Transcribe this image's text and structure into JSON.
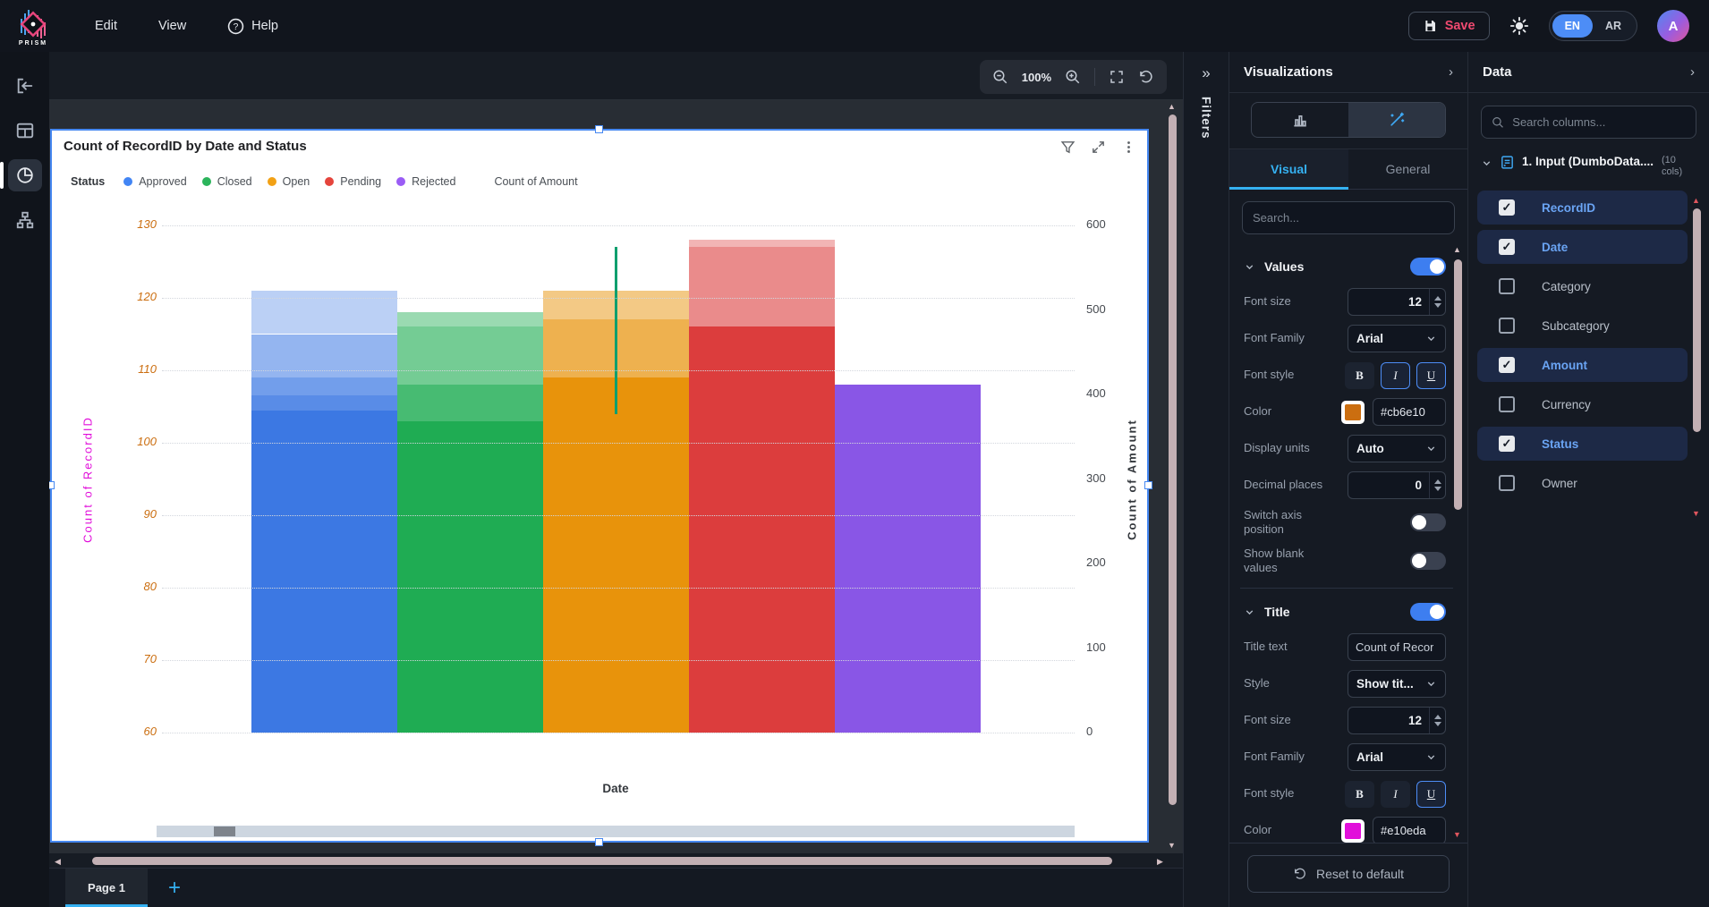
{
  "topbar": {
    "brand": "PRISM",
    "menu": [
      "Edit",
      "View",
      "Help"
    ],
    "save_label": "Save",
    "lang_en": "EN",
    "lang_ar": "AR",
    "avatar_initial": "A"
  },
  "canvas_toolbar": {
    "zoom_level": "100%"
  },
  "filters_strip": {
    "label": "Filters"
  },
  "chart_widget": {
    "title": "Count of RecordID by Date and Status",
    "legend_field": "Status",
    "secondary_legend": "Count of Amount"
  },
  "chart_data": {
    "type": "bar",
    "title": "Count of RecordID by Date and Status",
    "xlabel": "Date",
    "ylabel_left": "Count of RecordID",
    "ylabel_right": "Count of Amount",
    "legend_position": "top",
    "grid": "dotted-horizontal",
    "x_tick_labels_visible": false,
    "y_left": {
      "min": 60,
      "max": 130,
      "ticks": [
        130,
        120,
        110,
        100,
        90,
        80,
        70,
        60
      ],
      "tick_color": "#cb6e10",
      "tick_style": "italic",
      "title_color": "#e10eda"
    },
    "y_right": {
      "min": 0,
      "max": 600,
      "ticks": [
        600,
        500,
        400,
        300,
        200,
        100,
        0
      ],
      "tick_color": "#45494f",
      "title_color": "#33373c"
    },
    "series": [
      {
        "name": "Approved",
        "color": "#3c78e3",
        "dot": "#4285f4",
        "total": 121,
        "segments": [
          {
            "from": 121,
            "to": 115,
            "opacity": 0.35
          },
          {
            "from": 115,
            "to": 109,
            "opacity": 0.55
          },
          {
            "from": 109,
            "to": 106.5,
            "opacity": 0.72
          },
          {
            "from": 106.5,
            "to": 104.5,
            "opacity": 0.85
          },
          {
            "from": 104.5,
            "to": 60,
            "opacity": 1
          }
        ]
      },
      {
        "name": "Closed",
        "color": "#1fac53",
        "dot": "#2bb45b",
        "total": 118,
        "segments": [
          {
            "from": 118,
            "to": 116,
            "opacity": 0.45
          },
          {
            "from": 116,
            "to": 108,
            "opacity": 0.62
          },
          {
            "from": 108,
            "to": 103,
            "opacity": 0.82
          },
          {
            "from": 103,
            "to": 60,
            "opacity": 1
          }
        ]
      },
      {
        "name": "Open",
        "color": "#e8930b",
        "dot": "#f2a115",
        "total": 121,
        "segments": [
          {
            "from": 121,
            "to": 117,
            "opacity": 0.5
          },
          {
            "from": 117,
            "to": 109,
            "opacity": 0.72
          },
          {
            "from": 109,
            "to": 60,
            "opacity": 1
          }
        ]
      },
      {
        "name": "Pending",
        "color": "#dc3d3d",
        "dot": "#e5443c",
        "total": 128,
        "segments": [
          {
            "from": 128,
            "to": 127,
            "opacity": 0.38
          },
          {
            "from": 127,
            "to": 116,
            "opacity": 0.6
          },
          {
            "from": 116,
            "to": 60,
            "opacity": 1
          }
        ]
      },
      {
        "name": "Rejected",
        "color": "#8956e6",
        "dot": "#9a5cf5",
        "total": 108,
        "segments": [
          {
            "from": 108,
            "to": 60,
            "opacity": 1
          }
        ]
      }
    ],
    "extra_line": {
      "color": "#0c9f6e",
      "value_from": 127,
      "value_to": 104,
      "x_fraction": 0.5
    }
  },
  "visualizations": {
    "title": "Visualizations",
    "tabs": {
      "visual": "Visual",
      "general": "General"
    },
    "search_placeholder": "Search...",
    "sections": [
      {
        "name": "Values",
        "enabled": true,
        "fields": [
          {
            "label": "Font size",
            "type": "number",
            "value": "12"
          },
          {
            "label": "Font Family",
            "type": "select",
            "value": "Arial"
          },
          {
            "label": "Font style",
            "type": "style",
            "bold": false,
            "italic": true,
            "underline": true
          },
          {
            "label": "Color",
            "type": "color",
            "value": "#cb6e10",
            "swatch": "#cb6e10"
          },
          {
            "label": "Display units",
            "type": "select",
            "value": "Auto"
          },
          {
            "label": "Decimal places",
            "type": "number",
            "value": "0"
          },
          {
            "label": "Switch axis position",
            "type": "toggle",
            "value": false
          },
          {
            "label": "Show blank values",
            "type": "toggle",
            "value": false
          }
        ]
      },
      {
        "name": "Title",
        "enabled": true,
        "fields": [
          {
            "label": "Title text",
            "type": "text",
            "value": "Count of Recor"
          },
          {
            "label": "Style",
            "type": "select",
            "value": "Show tit..."
          },
          {
            "label": "Font size",
            "type": "number",
            "value": "12"
          },
          {
            "label": "Font Family",
            "type": "select",
            "value": "Arial"
          },
          {
            "label": "Font style",
            "type": "style",
            "bold": false,
            "italic": false,
            "underline": true
          },
          {
            "label": "Color",
            "type": "color",
            "value": "#e10eda",
            "swatch": "#e10eda"
          }
        ]
      }
    ],
    "reset_button": "Reset to default"
  },
  "data_panel": {
    "title": "Data",
    "search_placeholder": "Search columns...",
    "dataset": {
      "label": "1. Input (DumboData....",
      "cols_note": "(10 cols)"
    },
    "columns": [
      {
        "name": "RecordID",
        "checked": true
      },
      {
        "name": "Date",
        "checked": true
      },
      {
        "name": "Category",
        "checked": false
      },
      {
        "name": "Subcategory",
        "checked": false
      },
      {
        "name": "Amount",
        "checked": true
      },
      {
        "name": "Currency",
        "checked": false
      },
      {
        "name": "Status",
        "checked": true
      },
      {
        "name": "Owner",
        "checked": false
      }
    ]
  },
  "tabs_bar": {
    "page_label": "Page 1",
    "add_label": "+"
  }
}
